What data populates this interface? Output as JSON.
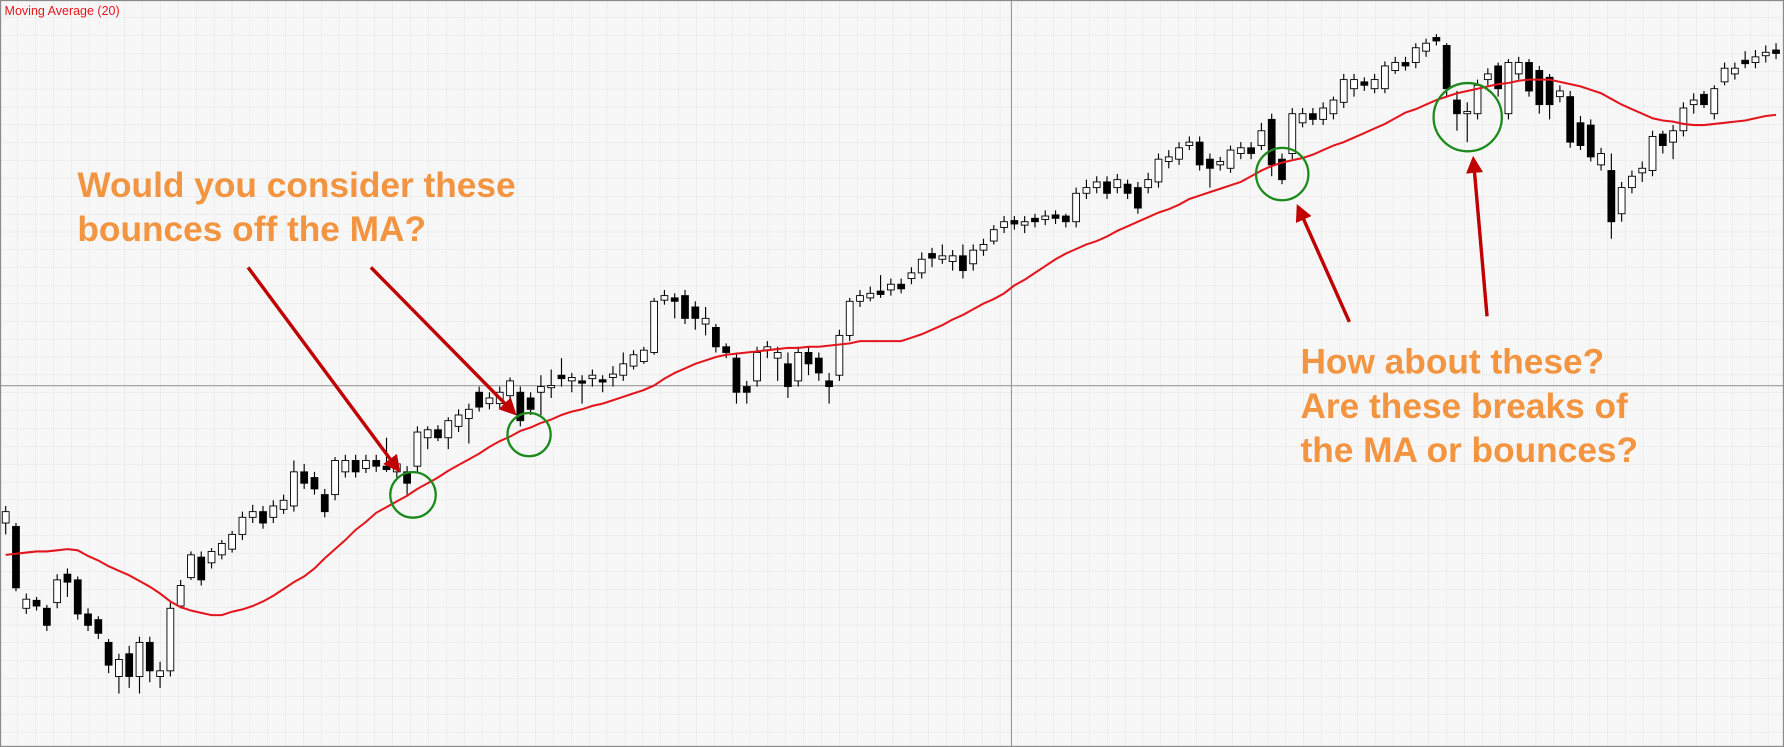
{
  "chart_data": {
    "type": "candlestick",
    "ylim": [
      343,
      1000
    ],
    "grid": true,
    "up_color": "#ffffff",
    "down_color": "#000000",
    "open": [
      540,
      537,
      465,
      472,
      465,
      470,
      495,
      490,
      460,
      455,
      435,
      405,
      425,
      405,
      435,
      405,
      410,
      467,
      492,
      510,
      505,
      512,
      517,
      530,
      545,
      550,
      545,
      552,
      555,
      585,
      580,
      565,
      565,
      585,
      595,
      588,
      595,
      590,
      585,
      585,
      590,
      615,
      622,
      615,
      625,
      632,
      655,
      645,
      645,
      652,
      655,
      650,
      655,
      659,
      670,
      665,
      665,
      667,
      666,
      668,
      670,
      678,
      682,
      690,
      736,
      738,
      740,
      730,
      715,
      712,
      695,
      685,
      660,
      665,
      692,
      685,
      680,
      665,
      690,
      685,
      665,
      670,
      705,
      735,
      738,
      744,
      745,
      750,
      755,
      760,
      777,
      772,
      770,
      775,
      768,
      780,
      788,
      800,
      806,
      802,
      808,
      807,
      811,
      810,
      805,
      830,
      835,
      840,
      835,
      838,
      835,
      835,
      840,
      858,
      860,
      872,
      875,
      860,
      855,
      852,
      865,
      870,
      872,
      895,
      860,
      865,
      892,
      900,
      895,
      900,
      910,
      922,
      928,
      922,
      922,
      938,
      945,
      945,
      955,
      967,
      960,
      912,
      900,
      900,
      930,
      942,
      900,
      935,
      945,
      938,
      932,
      915,
      915,
      892,
      890,
      855,
      850,
      812,
      835,
      848,
      850,
      882,
      875,
      885,
      908,
      917,
      900,
      928,
      935,
      947,
      945,
      951,
      956
    ],
    "high": [
      555,
      540,
      478,
      475,
      468,
      495,
      500,
      493,
      465,
      458,
      438,
      425,
      432,
      440,
      440,
      418,
      470,
      490,
      515,
      515,
      518,
      525,
      533,
      550,
      556,
      555,
      560,
      565,
      595,
      592,
      585,
      570,
      598,
      600,
      600,
      600,
      600,
      615,
      596,
      590,
      625,
      625,
      626,
      633,
      640,
      645,
      660,
      655,
      660,
      668,
      660,
      655,
      670,
      675,
      685,
      672,
      670,
      675,
      670,
      678,
      690,
      692,
      695,
      738,
      745,
      742,
      745,
      735,
      730,
      715,
      698,
      690,
      665,
      695,
      700,
      695,
      690,
      695,
      695,
      690,
      672,
      710,
      738,
      745,
      748,
      758,
      755,
      755,
      765,
      778,
      782,
      785,
      780,
      785,
      785,
      790,
      802,
      810,
      810,
      810,
      812,
      815,
      815,
      812,
      835,
      842,
      845,
      845,
      847,
      842,
      840,
      848,
      865,
      868,
      875,
      880,
      880,
      865,
      862,
      872,
      875,
      875,
      892,
      900,
      865,
      905,
      905,
      905,
      910,
      915,
      935,
      935,
      932,
      935,
      946,
      950,
      950,
      962,
      966,
      970,
      962,
      920,
      910,
      930,
      940,
      945,
      948,
      950,
      948,
      942,
      935,
      925,
      920,
      898,
      895,
      870,
      865,
      840,
      850,
      858,
      885,
      885,
      890,
      910,
      918,
      920,
      925,
      945,
      945,
      955,
      956,
      960,
      962
    ],
    "low": [
      530,
      480,
      460,
      463,
      445,
      465,
      475,
      455,
      445,
      438,
      408,
      390,
      395,
      390,
      400,
      395,
      405,
      465,
      490,
      485,
      500,
      508,
      514,
      525,
      540,
      535,
      540,
      548,
      550,
      570,
      565,
      545,
      560,
      580,
      580,
      584,
      585,
      585,
      580,
      565,
      585,
      605,
      612,
      605,
      620,
      610,
      638,
      640,
      640,
      640,
      625,
      635,
      635,
      650,
      660,
      655,
      645,
      660,
      655,
      660,
      665,
      675,
      680,
      688,
      732,
      720,
      715,
      710,
      705,
      690,
      685,
      645,
      645,
      660,
      685,
      665,
      650,
      660,
      670,
      665,
      645,
      665,
      700,
      730,
      735,
      738,
      740,
      742,
      750,
      755,
      765,
      768,
      762,
      755,
      762,
      775,
      785,
      795,
      798,
      795,
      800,
      802,
      803,
      800,
      800,
      825,
      830,
      825,
      830,
      825,
      812,
      830,
      835,
      852,
      855,
      868,
      850,
      835,
      850,
      848,
      860,
      860,
      868,
      845,
      838,
      860,
      888,
      890,
      890,
      895,
      905,
      915,
      920,
      918,
      918,
      935,
      938,
      940,
      950,
      960,
      915,
      885,
      875,
      895,
      925,
      915,
      895,
      930,
      915,
      900,
      895,
      910,
      870,
      868,
      858,
      850,
      790,
      805,
      830,
      840,
      845,
      865,
      860,
      880,
      900,
      905,
      895,
      925,
      930,
      940,
      940,
      945,
      948
    ],
    "close": [
      550,
      483,
      473,
      467,
      450,
      490,
      488,
      460,
      450,
      443,
      415,
      420,
      405,
      435,
      410,
      410,
      465,
      485,
      512,
      490,
      515,
      522,
      530,
      545,
      550,
      540,
      555,
      560,
      585,
      575,
      570,
      550,
      595,
      595,
      585,
      595,
      590,
      587,
      592,
      575,
      620,
      622,
      615,
      630,
      635,
      640,
      642,
      650,
      655,
      665,
      630,
      640,
      660,
      661,
      667,
      668,
      663,
      670,
      664,
      671,
      680,
      688,
      692,
      735,
      740,
      735,
      720,
      720,
      720,
      695,
      690,
      655,
      655,
      690,
      695,
      690,
      660,
      690,
      680,
      672,
      660,
      705,
      735,
      740,
      742,
      741,
      750,
      746,
      760,
      772,
      773,
      775,
      775,
      762,
      780,
      785,
      798,
      805,
      803,
      805,
      805,
      810,
      808,
      805,
      830,
      835,
      840,
      830,
      842,
      830,
      817,
      842,
      860,
      862,
      870,
      875,
      855,
      852,
      858,
      868,
      870,
      865,
      885,
      855,
      842,
      900,
      900,
      895,
      905,
      912,
      930,
      930,
      925,
      930,
      942,
      945,
      942,
      958,
      962,
      964,
      922,
      900,
      902,
      925,
      935,
      922,
      945,
      945,
      920,
      908,
      908,
      920,
      875,
      872,
      862,
      865,
      805,
      835,
      845,
      852,
      880,
      872,
      885,
      905,
      912,
      908,
      922,
      940,
      940,
      944,
      950,
      954,
      953
    ],
    "series": [
      {
        "name": "Moving Average (20)",
        "color": "#e3161d",
        "values": [
          512,
          513,
          514,
          515,
          515,
          516,
          517,
          516,
          511,
          507,
          502,
          498,
          494,
          489,
          484,
          478,
          471,
          466,
          463,
          461,
          459,
          459,
          462,
          464,
          467,
          471,
          476,
          482,
          488,
          493,
          500,
          509,
          517,
          525,
          534,
          541,
          549,
          554,
          559,
          564,
          570,
          575,
          580,
          586,
          591,
          596,
          601,
          607,
          612,
          616,
          621,
          624,
          628,
          631,
          635,
          638,
          640,
          643,
          645,
          648,
          651,
          654,
          657,
          661,
          667,
          672,
          676,
          680,
          683,
          686,
          688,
          689,
          690,
          691,
          692,
          693,
          694,
          694,
          695,
          695,
          696,
          697,
          698,
          700,
          700,
          700,
          700,
          700,
          703,
          706,
          710,
          714,
          719,
          723,
          728,
          733,
          737,
          742,
          749,
          754,
          760,
          766,
          772,
          777,
          781,
          785,
          788,
          792,
          797,
          801,
          805,
          809,
          813,
          816,
          820,
          825,
          828,
          831,
          834,
          837,
          840,
          845,
          850,
          854,
          857,
          859,
          861,
          864,
          868,
          872,
          875,
          879,
          883,
          887,
          891,
          896,
          901,
          904,
          908,
          912,
          915,
          918,
          920,
          922,
          924,
          926,
          927,
          929,
          930,
          930,
          930,
          928,
          926,
          924,
          921,
          918,
          913,
          908,
          904,
          900,
          896,
          894,
          893,
          891,
          890,
          890,
          891,
          892,
          893,
          894,
          896,
          898,
          899
        ]
      }
    ],
    "annotations": [
      {
        "color": "#f39440",
        "lines": [
          "Would you consider these",
          "bounces off the MA?"
        ]
      },
      {
        "color": "#f39440",
        "lines": [
          "How about these?",
          "Are these breaks of",
          "the MA or bounces?"
        ]
      }
    ]
  }
}
